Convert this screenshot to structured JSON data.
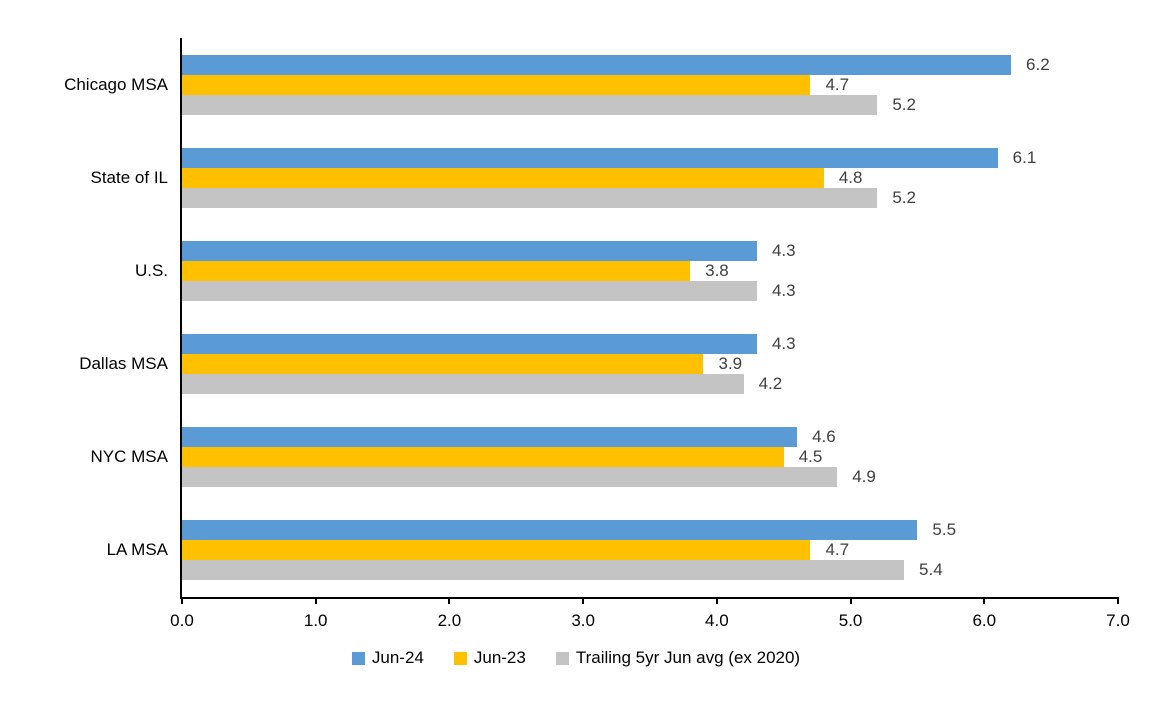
{
  "chart_data": {
    "type": "bar",
    "orientation": "horizontal",
    "title": "",
    "xlabel": "",
    "ylabel": "",
    "grid": false,
    "legend_position": "bottom",
    "value_labels": true,
    "value_label_color": "#404040",
    "axis_color": "#000000",
    "xlim": [
      0,
      7
    ],
    "x_tick_values": [
      0,
      1,
      2,
      3,
      4,
      5,
      6,
      7
    ],
    "x_tick_labels": [
      "0.0",
      "1.0",
      "2.0",
      "3.0",
      "4.0",
      "5.0",
      "6.0",
      "7.0"
    ],
    "categories": [
      "Chicago MSA",
      "State of IL",
      "U.S.",
      "Dallas MSA",
      "NYC MSA",
      "LA MSA"
    ],
    "series": [
      {
        "name": "Jun-24",
        "color": "#5B9BD5",
        "values": [
          6.2,
          6.1,
          4.3,
          4.3,
          4.6,
          5.5
        ],
        "labels": [
          "6.2",
          "6.1",
          "4.3",
          "4.3",
          "4.6",
          "5.5"
        ]
      },
      {
        "name": "Jun-23",
        "color": "#FFC000",
        "values": [
          4.7,
          4.8,
          3.8,
          3.9,
          4.5,
          4.7
        ],
        "labels": [
          "4.7",
          "4.8",
          "3.8",
          "3.9",
          "4.5",
          "4.7"
        ]
      },
      {
        "name": "Trailing 5yr Jun avg (ex 2020)",
        "color": "#C4C4C4",
        "values": [
          5.2,
          5.2,
          4.3,
          4.2,
          4.9,
          5.4
        ],
        "labels": [
          "5.2",
          "5.2",
          "4.3",
          "4.2",
          "4.9",
          "5.4"
        ]
      }
    ]
  }
}
